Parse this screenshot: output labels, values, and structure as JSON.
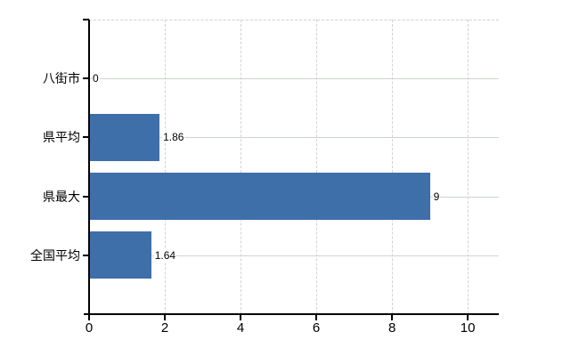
{
  "chart_data": {
    "type": "bar",
    "orientation": "horizontal",
    "title": "",
    "xlabel": "",
    "ylabel": "",
    "categories": [
      "八街市",
      "県平均",
      "県最大",
      "全国平均"
    ],
    "values": [
      0,
      1.86,
      9,
      1.64
    ],
    "value_labels": [
      "0",
      "1.86",
      "9",
      "1.64"
    ],
    "xlim": [
      0,
      10.82
    ],
    "xticks": [
      0,
      2,
      4,
      6,
      8,
      10
    ],
    "xtick_labels": [
      "0",
      "2",
      "4",
      "6",
      "8",
      "10"
    ],
    "grid": true,
    "legend": "none",
    "colors": {
      "bar": "#3e6fa9",
      "h_gridline": "#ccd6cc",
      "v_gridline": "#d6d0d6",
      "axis": "#000000",
      "text": "#000000",
      "background": "#ffffff"
    }
  }
}
